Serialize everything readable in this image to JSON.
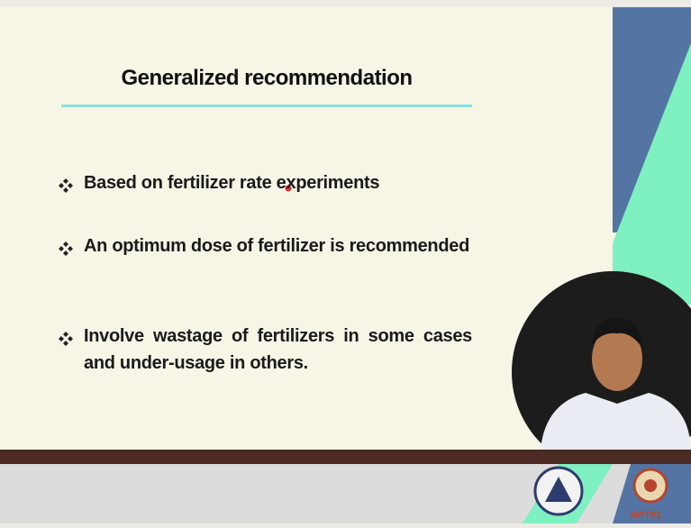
{
  "slide": {
    "title": "Generalized recommendation",
    "bullets": [
      "Based on fertilizer rate experiments",
      "An optimum dose of fertilizer is recommended",
      "Involve wastage of fertilizers in some cases and under-usage in others."
    ]
  },
  "footer": {
    "logo_text": "NPTEL"
  }
}
